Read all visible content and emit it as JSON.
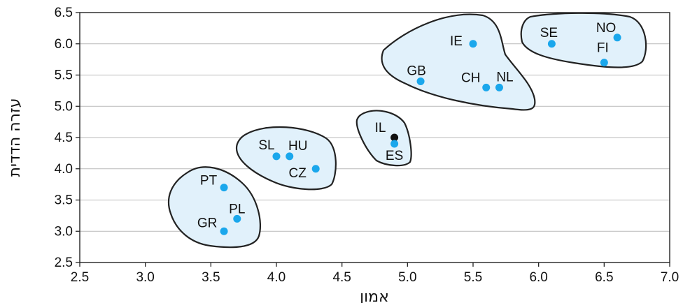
{
  "chart_data": {
    "type": "scatter",
    "xlabel": "אמון",
    "ylabel": "עזרה הדדית",
    "xlim": [
      2.5,
      7.0
    ],
    "ylim": [
      2.5,
      6.5
    ],
    "x_ticks": [
      "2.5",
      "3.0",
      "3.5",
      "4.0",
      "4.5",
      "5.0",
      "5.5",
      "6.0",
      "6.5",
      "7.0"
    ],
    "y_ticks": [
      "2.5",
      "3.0",
      "3.5",
      "4.0",
      "4.5",
      "5.0",
      "5.5",
      "6.0",
      "6.5"
    ],
    "grid": "horizontal",
    "points": [
      {
        "label": "PT",
        "x": 3.6,
        "y": 3.7,
        "color": "#1aa7ec"
      },
      {
        "label": "PL",
        "x": 3.7,
        "y": 3.2,
        "color": "#1aa7ec"
      },
      {
        "label": "GR",
        "x": 3.6,
        "y": 3.0,
        "color": "#1aa7ec"
      },
      {
        "label": "SL",
        "x": 4.0,
        "y": 4.2,
        "color": "#1aa7ec"
      },
      {
        "label": "HU",
        "x": 4.1,
        "y": 4.2,
        "color": "#1aa7ec"
      },
      {
        "label": "CZ",
        "x": 4.3,
        "y": 4.0,
        "color": "#1aa7ec"
      },
      {
        "label": "IL",
        "x": 4.9,
        "y": 4.5,
        "color": "#111111"
      },
      {
        "label": "ES",
        "x": 4.9,
        "y": 4.4,
        "color": "#1aa7ec"
      },
      {
        "label": "GB",
        "x": 5.1,
        "y": 5.4,
        "color": "#1aa7ec"
      },
      {
        "label": "IE",
        "x": 5.5,
        "y": 6.0,
        "color": "#1aa7ec"
      },
      {
        "label": "CH",
        "x": 5.6,
        "y": 5.3,
        "color": "#1aa7ec"
      },
      {
        "label": "NL",
        "x": 5.7,
        "y": 5.3,
        "color": "#1aa7ec"
      },
      {
        "label": "SE",
        "x": 6.1,
        "y": 6.0,
        "color": "#1aa7ec"
      },
      {
        "label": "NO",
        "x": 6.6,
        "y": 6.1,
        "color": "#1aa7ec"
      },
      {
        "label": "FI",
        "x": 6.5,
        "y": 5.7,
        "color": "#1aa7ec"
      }
    ],
    "clusters": [
      [
        "PT",
        "PL",
        "GR"
      ],
      [
        "SL",
        "HU",
        "CZ"
      ],
      [
        "IL",
        "ES"
      ],
      [
        "GB",
        "IE",
        "CH",
        "NL"
      ],
      [
        "SE",
        "NO",
        "FI"
      ]
    ],
    "colors": {
      "cluster_fill": "#e1f1fb",
      "cluster_stroke": "#222222",
      "point": "#1aa7ec",
      "highlight_point": "#111111"
    }
  }
}
